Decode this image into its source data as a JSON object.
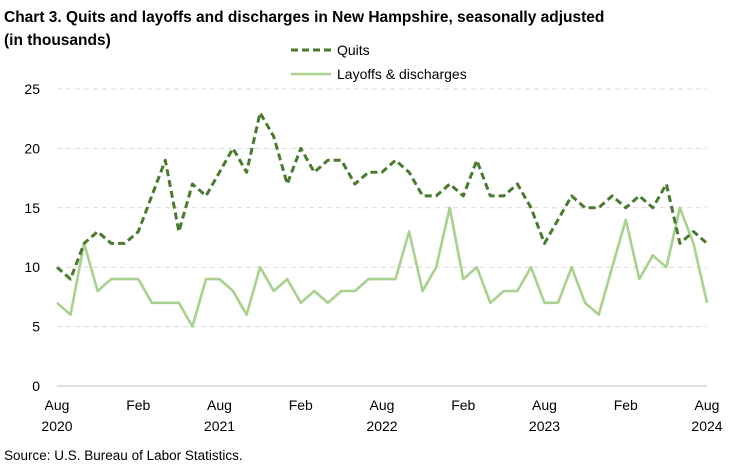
{
  "title_line1": "Chart 3. Quits and layoffs and discharges in New Hampshire, seasonally adjusted",
  "title_line2": "(in thousands)",
  "source": "Source: U.S. Bureau of Labor Statistics.",
  "colors": {
    "quits": "#4a7a2e",
    "layoffs": "#a9d18e",
    "grid": "#d9d9d9"
  },
  "chart_data": {
    "type": "line",
    "ylim": [
      0,
      25
    ],
    "yticks": [
      0,
      5,
      10,
      15,
      20,
      25
    ],
    "grid": true,
    "legend_position": "top",
    "x_tick_labels": [
      {
        "index": 0,
        "month": "Aug",
        "year": "2020"
      },
      {
        "index": 6,
        "month": "Feb",
        "year": ""
      },
      {
        "index": 12,
        "month": "Aug",
        "year": "2021"
      },
      {
        "index": 18,
        "month": "Feb",
        "year": ""
      },
      {
        "index": 24,
        "month": "Aug",
        "year": "2022"
      },
      {
        "index": 30,
        "month": "Feb",
        "year": ""
      },
      {
        "index": 36,
        "month": "Aug",
        "year": "2023"
      },
      {
        "index": 42,
        "month": "Feb",
        "year": ""
      },
      {
        "index": 48,
        "month": "Aug",
        "year": "2024"
      }
    ],
    "series": [
      {
        "name": "Quits",
        "style": "dashed",
        "values": [
          10,
          9,
          12,
          13,
          12,
          12,
          13,
          16,
          19,
          13,
          17,
          16,
          18,
          20,
          18,
          23,
          21,
          17,
          20,
          18,
          19,
          19,
          17,
          18,
          18,
          19,
          18,
          16,
          16,
          17,
          16,
          19,
          16,
          16,
          17,
          15,
          12,
          14,
          16,
          15,
          15,
          16,
          15,
          16,
          15,
          17,
          12,
          13,
          12
        ]
      },
      {
        "name": "Layoffs & discharges",
        "style": "solid",
        "values": [
          7,
          6,
          12,
          8,
          9,
          9,
          9,
          7,
          7,
          7,
          5,
          9,
          9,
          8,
          6,
          10,
          8,
          9,
          7,
          8,
          7,
          8,
          8,
          9,
          9,
          9,
          13,
          8,
          10,
          15,
          9,
          10,
          7,
          8,
          8,
          10,
          7,
          7,
          10,
          7,
          6,
          10,
          14,
          9,
          11,
          10,
          15,
          12,
          7
        ]
      }
    ]
  }
}
